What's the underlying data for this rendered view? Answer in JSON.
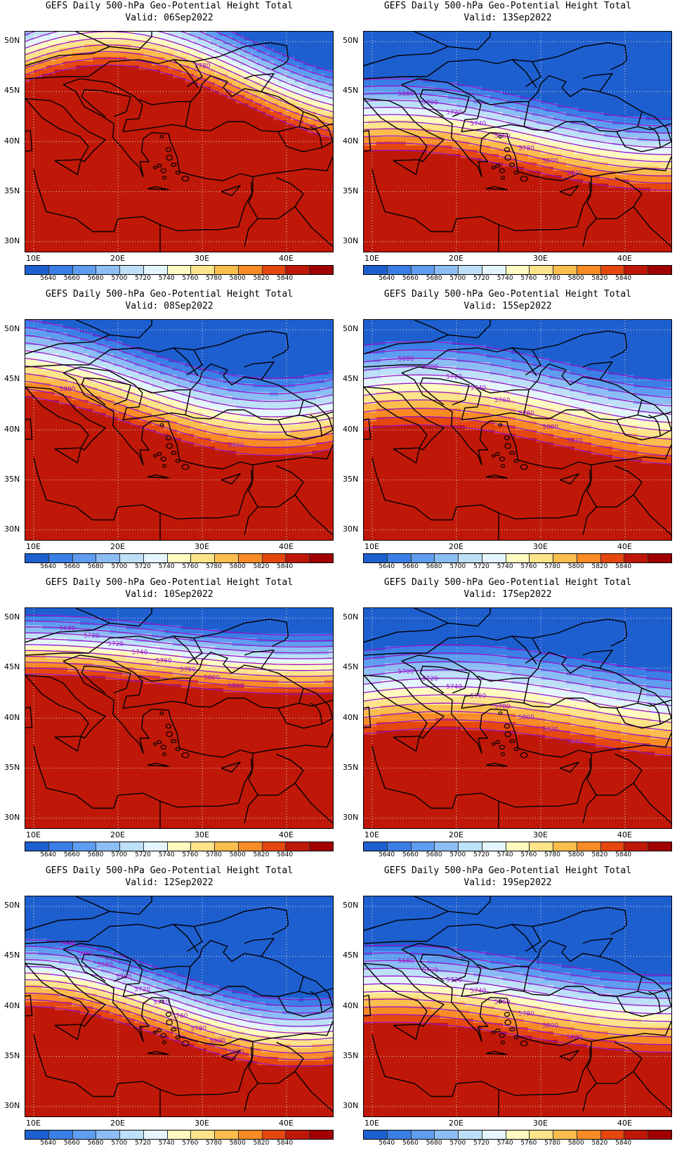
{
  "title_line1": "GEFS Daily 500-hPa Geo-Potential Height Total",
  "valid_prefix": "Valid: ",
  "lat_labels": [
    "50N",
    "45N",
    "40N",
    "35N",
    "30N"
  ],
  "lon_labels": [
    "10E",
    "20E",
    "30E",
    "40E"
  ],
  "colorbar": {
    "labels": [
      "5640",
      "5660",
      "5680",
      "5700",
      "5720",
      "5740",
      "5760",
      "5780",
      "5800",
      "5820",
      "5840"
    ],
    "colors": [
      "#1e5fd0",
      "#3a7ee6",
      "#5e9df0",
      "#8cbdf4",
      "#bde0f8",
      "#e4f6fb",
      "#fffbc0",
      "#fde38a",
      "#fbbd4e",
      "#f88b25",
      "#e6470f",
      "#c01808",
      "#a10000"
    ]
  },
  "contour_color": "#9a16c9",
  "panels": [
    {
      "valid": "Valid: 06Sep2022",
      "field": {
        "base": 5860,
        "lat_ref": 43,
        "slope": -30,
        "wave": 4.0,
        "phase": 0.2
      },
      "contour_labels": [
        "5780"
      ]
    },
    {
      "valid": "Valid: 13Sep2022",
      "field": {
        "base": 5760,
        "lat_ref": 40,
        "slope": -28,
        "wave": 2.0,
        "phase": 0.4
      },
      "contour_labels": [
        "5680",
        "5700",
        "5720",
        "5740",
        "5760",
        "5780",
        "5800",
        "5820"
      ]
    },
    {
      "valid": "Valid: 08Sep2022",
      "field": {
        "base": 5800,
        "lat_ref": 42,
        "slope": -26,
        "wave": 3.0,
        "phase": 0.6
      },
      "contour_labels": [
        "5800",
        "5820"
      ]
    },
    {
      "valid": "Valid: 15Sep2022",
      "field": {
        "base": 5780,
        "lat_ref": 41,
        "slope": -24,
        "wave": 2.0,
        "phase": 0.3
      },
      "contour_labels": [
        "5680",
        "5700",
        "5720",
        "5740",
        "5760",
        "5780",
        "5800",
        "5820"
      ]
    },
    {
      "valid": "Valid: 10Sep2022",
      "field": {
        "base": 5820,
        "lat_ref": 44,
        "slope": -34,
        "wave": 1.0,
        "phase": 0.5
      },
      "contour_labels": [
        "5680",
        "5700",
        "5720",
        "5740",
        "5760",
        "5780",
        "5800",
        "5820"
      ]
    },
    {
      "valid": "Valid: 17Sep2022",
      "field": {
        "base": 5780,
        "lat_ref": 40,
        "slope": -24,
        "wave": 1.5,
        "phase": 0.2
      },
      "contour_labels": [
        "5700",
        "5720",
        "5740",
        "5760",
        "5780",
        "5800",
        "5820",
        "5840"
      ]
    },
    {
      "valid": "Valid: 12Sep2022",
      "field": {
        "base": 5750,
        "lat_ref": 40,
        "slope": -30,
        "wave": 3.0,
        "phase": 0.5
      },
      "contour_labels": [
        "5640",
        "5660",
        "5680",
        "5700",
        "5720",
        "5740",
        "5760",
        "5780",
        "5800",
        "5820"
      ]
    },
    {
      "valid": "Valid: 19Sep2022",
      "field": {
        "base": 5760,
        "lat_ref": 40,
        "slope": -26,
        "wave": 1.5,
        "phase": 0.4
      },
      "contour_labels": [
        "5680",
        "5700",
        "5720",
        "5740",
        "5760",
        "5780",
        "5800",
        "5820"
      ]
    }
  ]
}
